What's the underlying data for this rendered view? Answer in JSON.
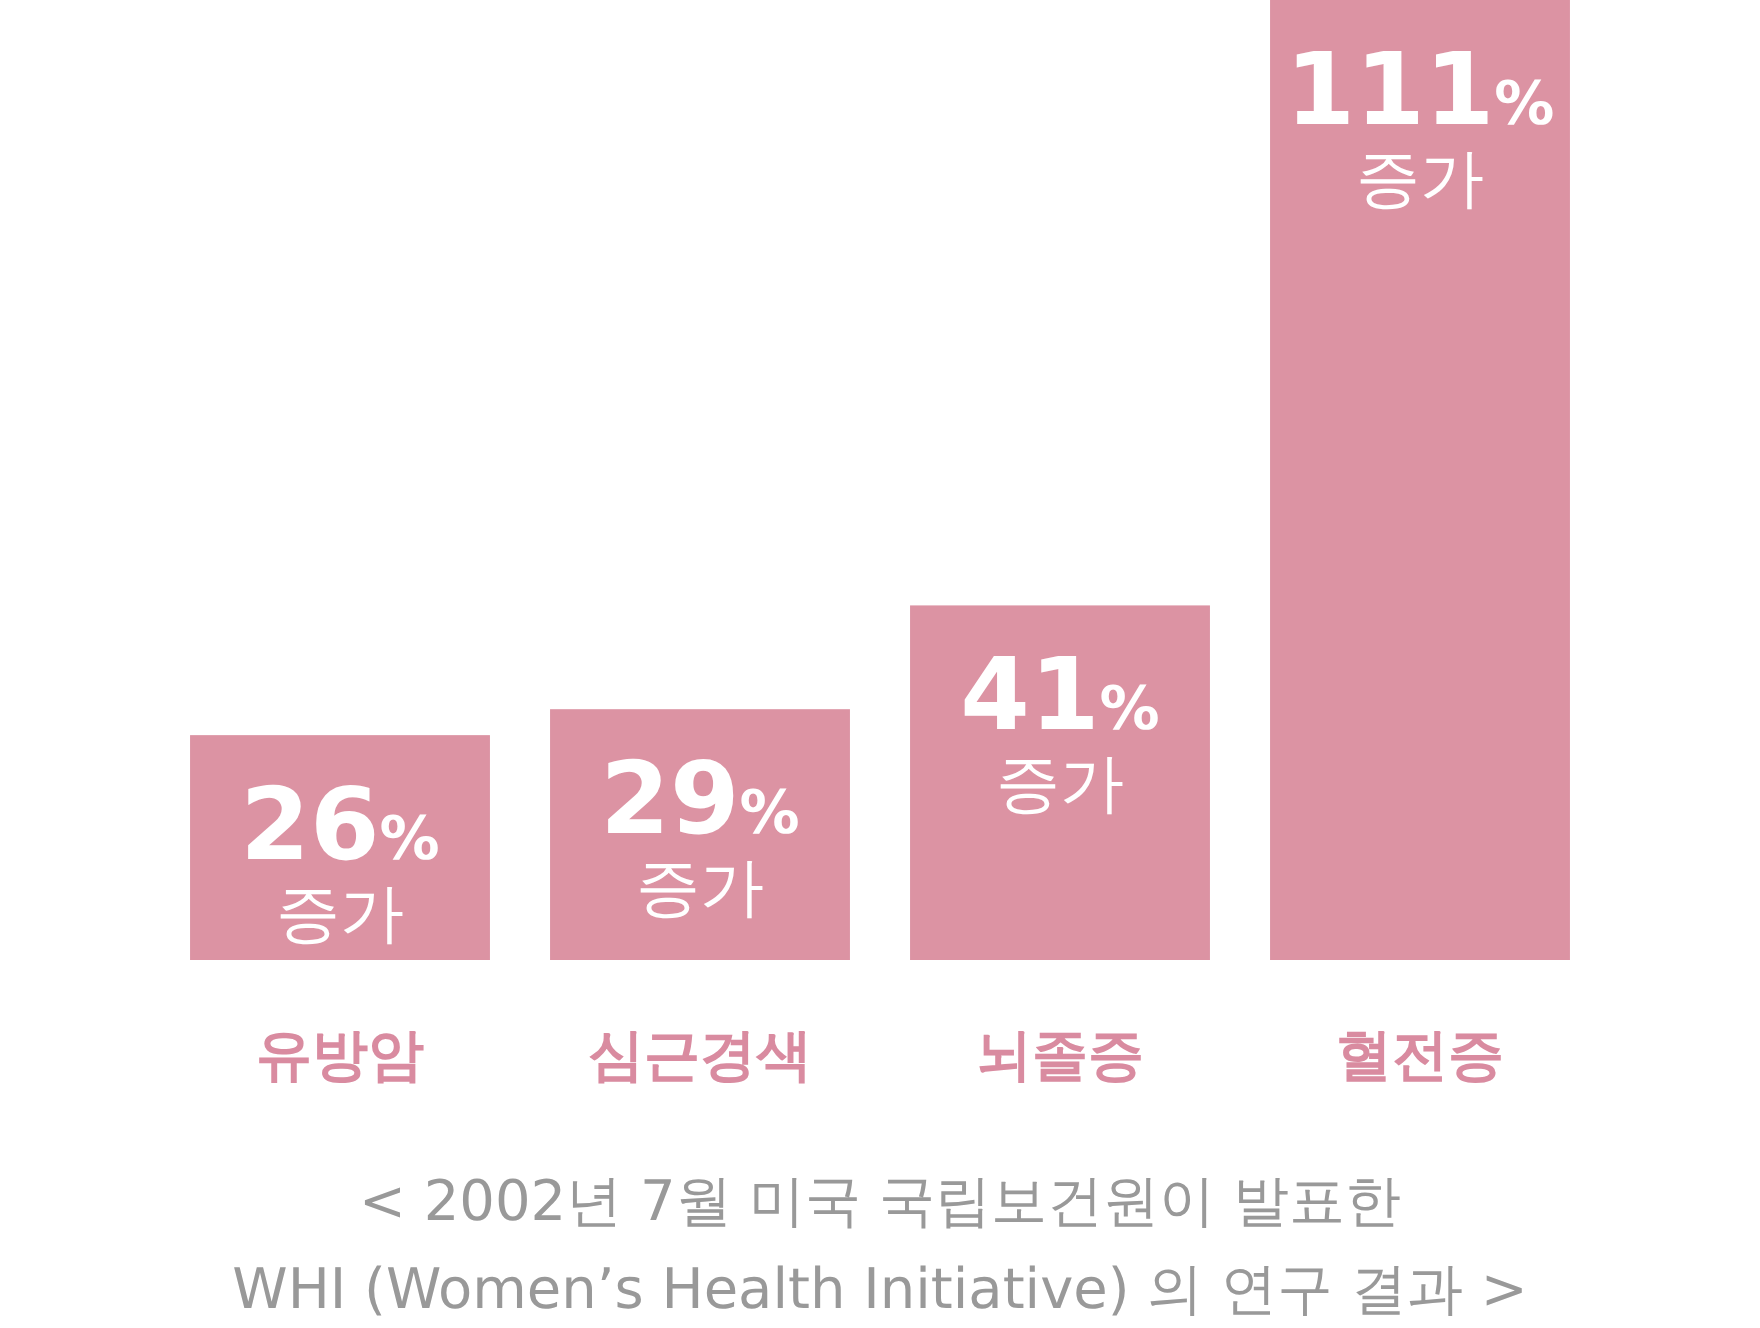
{
  "chart_data": {
    "type": "bar",
    "categories": [
      "유방암",
      "심근경색",
      "뇌졸증",
      "혈전증"
    ],
    "values": [
      26,
      29,
      41,
      111
    ],
    "color": "#dc93a3",
    "value_labels": [
      "26% 증가",
      "29% 증가",
      "41% 증가",
      "111% 증가"
    ],
    "annotations": [
      "< 2002년 7월 미국 국립보건원이 발표한",
      "WHI (Women’s Health Initiative) 의 연구 결과 >"
    ]
  }
}
